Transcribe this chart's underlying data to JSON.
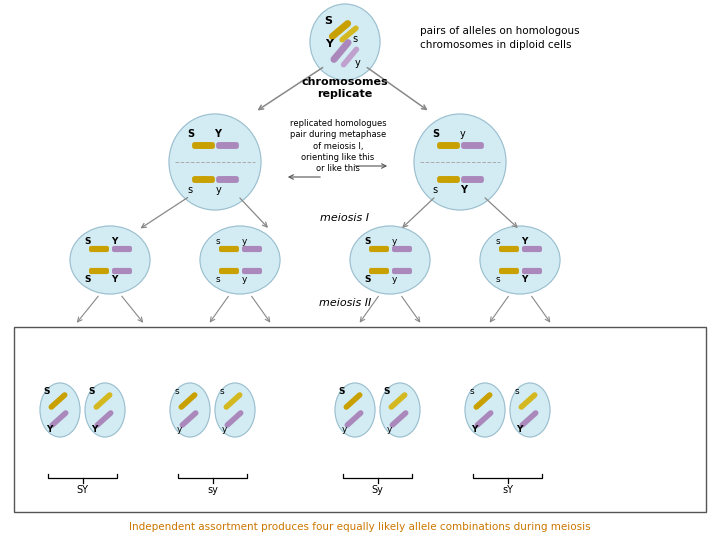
{
  "bg_color": "#ffffff",
  "cell_color": "#cce8f0",
  "cell_alpha": 0.8,
  "gold_color": "#c8a000",
  "gold2_color": "#d4b820",
  "purple_color": "#aa88bb",
  "purple2_color": "#c0a0cc",
  "text_color_orange": "#cc7700",
  "title_text": "pairs of alleles on homologous\nchromosomes in diploid cells",
  "bottom_text": "Independent assortment produces four equally likely allele combinations during meiosis",
  "meiosis1_label": "meiosis I",
  "meiosis2_label": "meiosis II",
  "chr_replicate_label": "chromosomes\nreplicate",
  "replicated_text": "replicated homologues\npair during metaphase\nof meiosis I,\norienting like this\nor like this"
}
